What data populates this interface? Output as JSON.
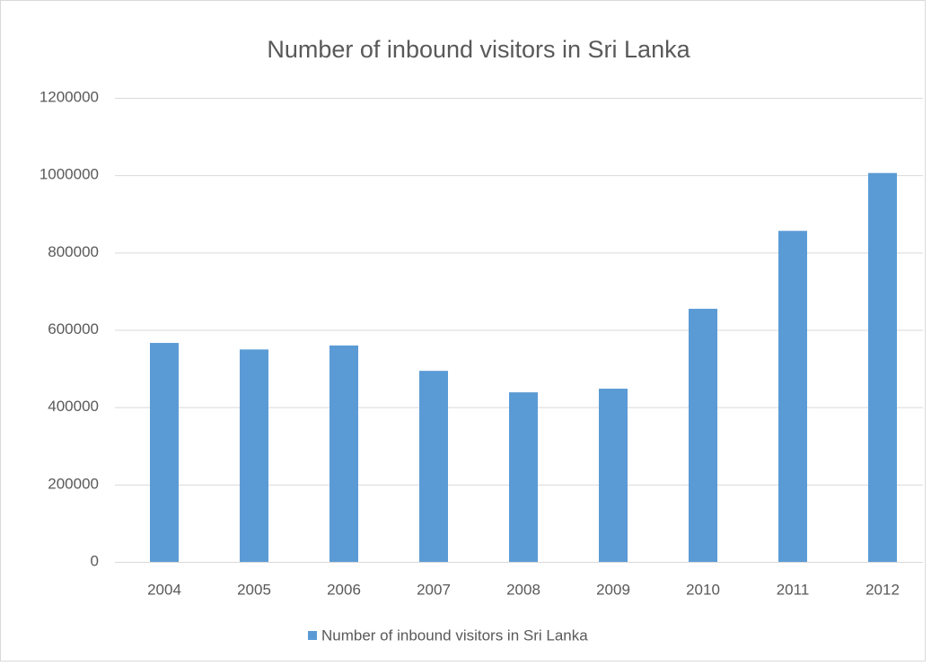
{
  "chart_data": {
    "type": "bar",
    "title": "Number of inbound visitors in Sri Lanka",
    "categories": [
      "2004",
      "2005",
      "2006",
      "2007",
      "2008",
      "2009",
      "2010",
      "2011",
      "2012"
    ],
    "series": [
      {
        "name": "Number of inbound visitors in Sri Lanka",
        "color": "#5b9bd5",
        "values": [
          566202,
          549308,
          559603,
          494008,
          438475,
          447890,
          654476,
          855975,
          1005605
        ]
      }
    ],
    "ylim": [
      0,
      1200000
    ],
    "yticks": [
      0,
      200000,
      400000,
      600000,
      800000,
      1000000,
      1200000
    ],
    "grid": true,
    "legend": "bottom"
  }
}
